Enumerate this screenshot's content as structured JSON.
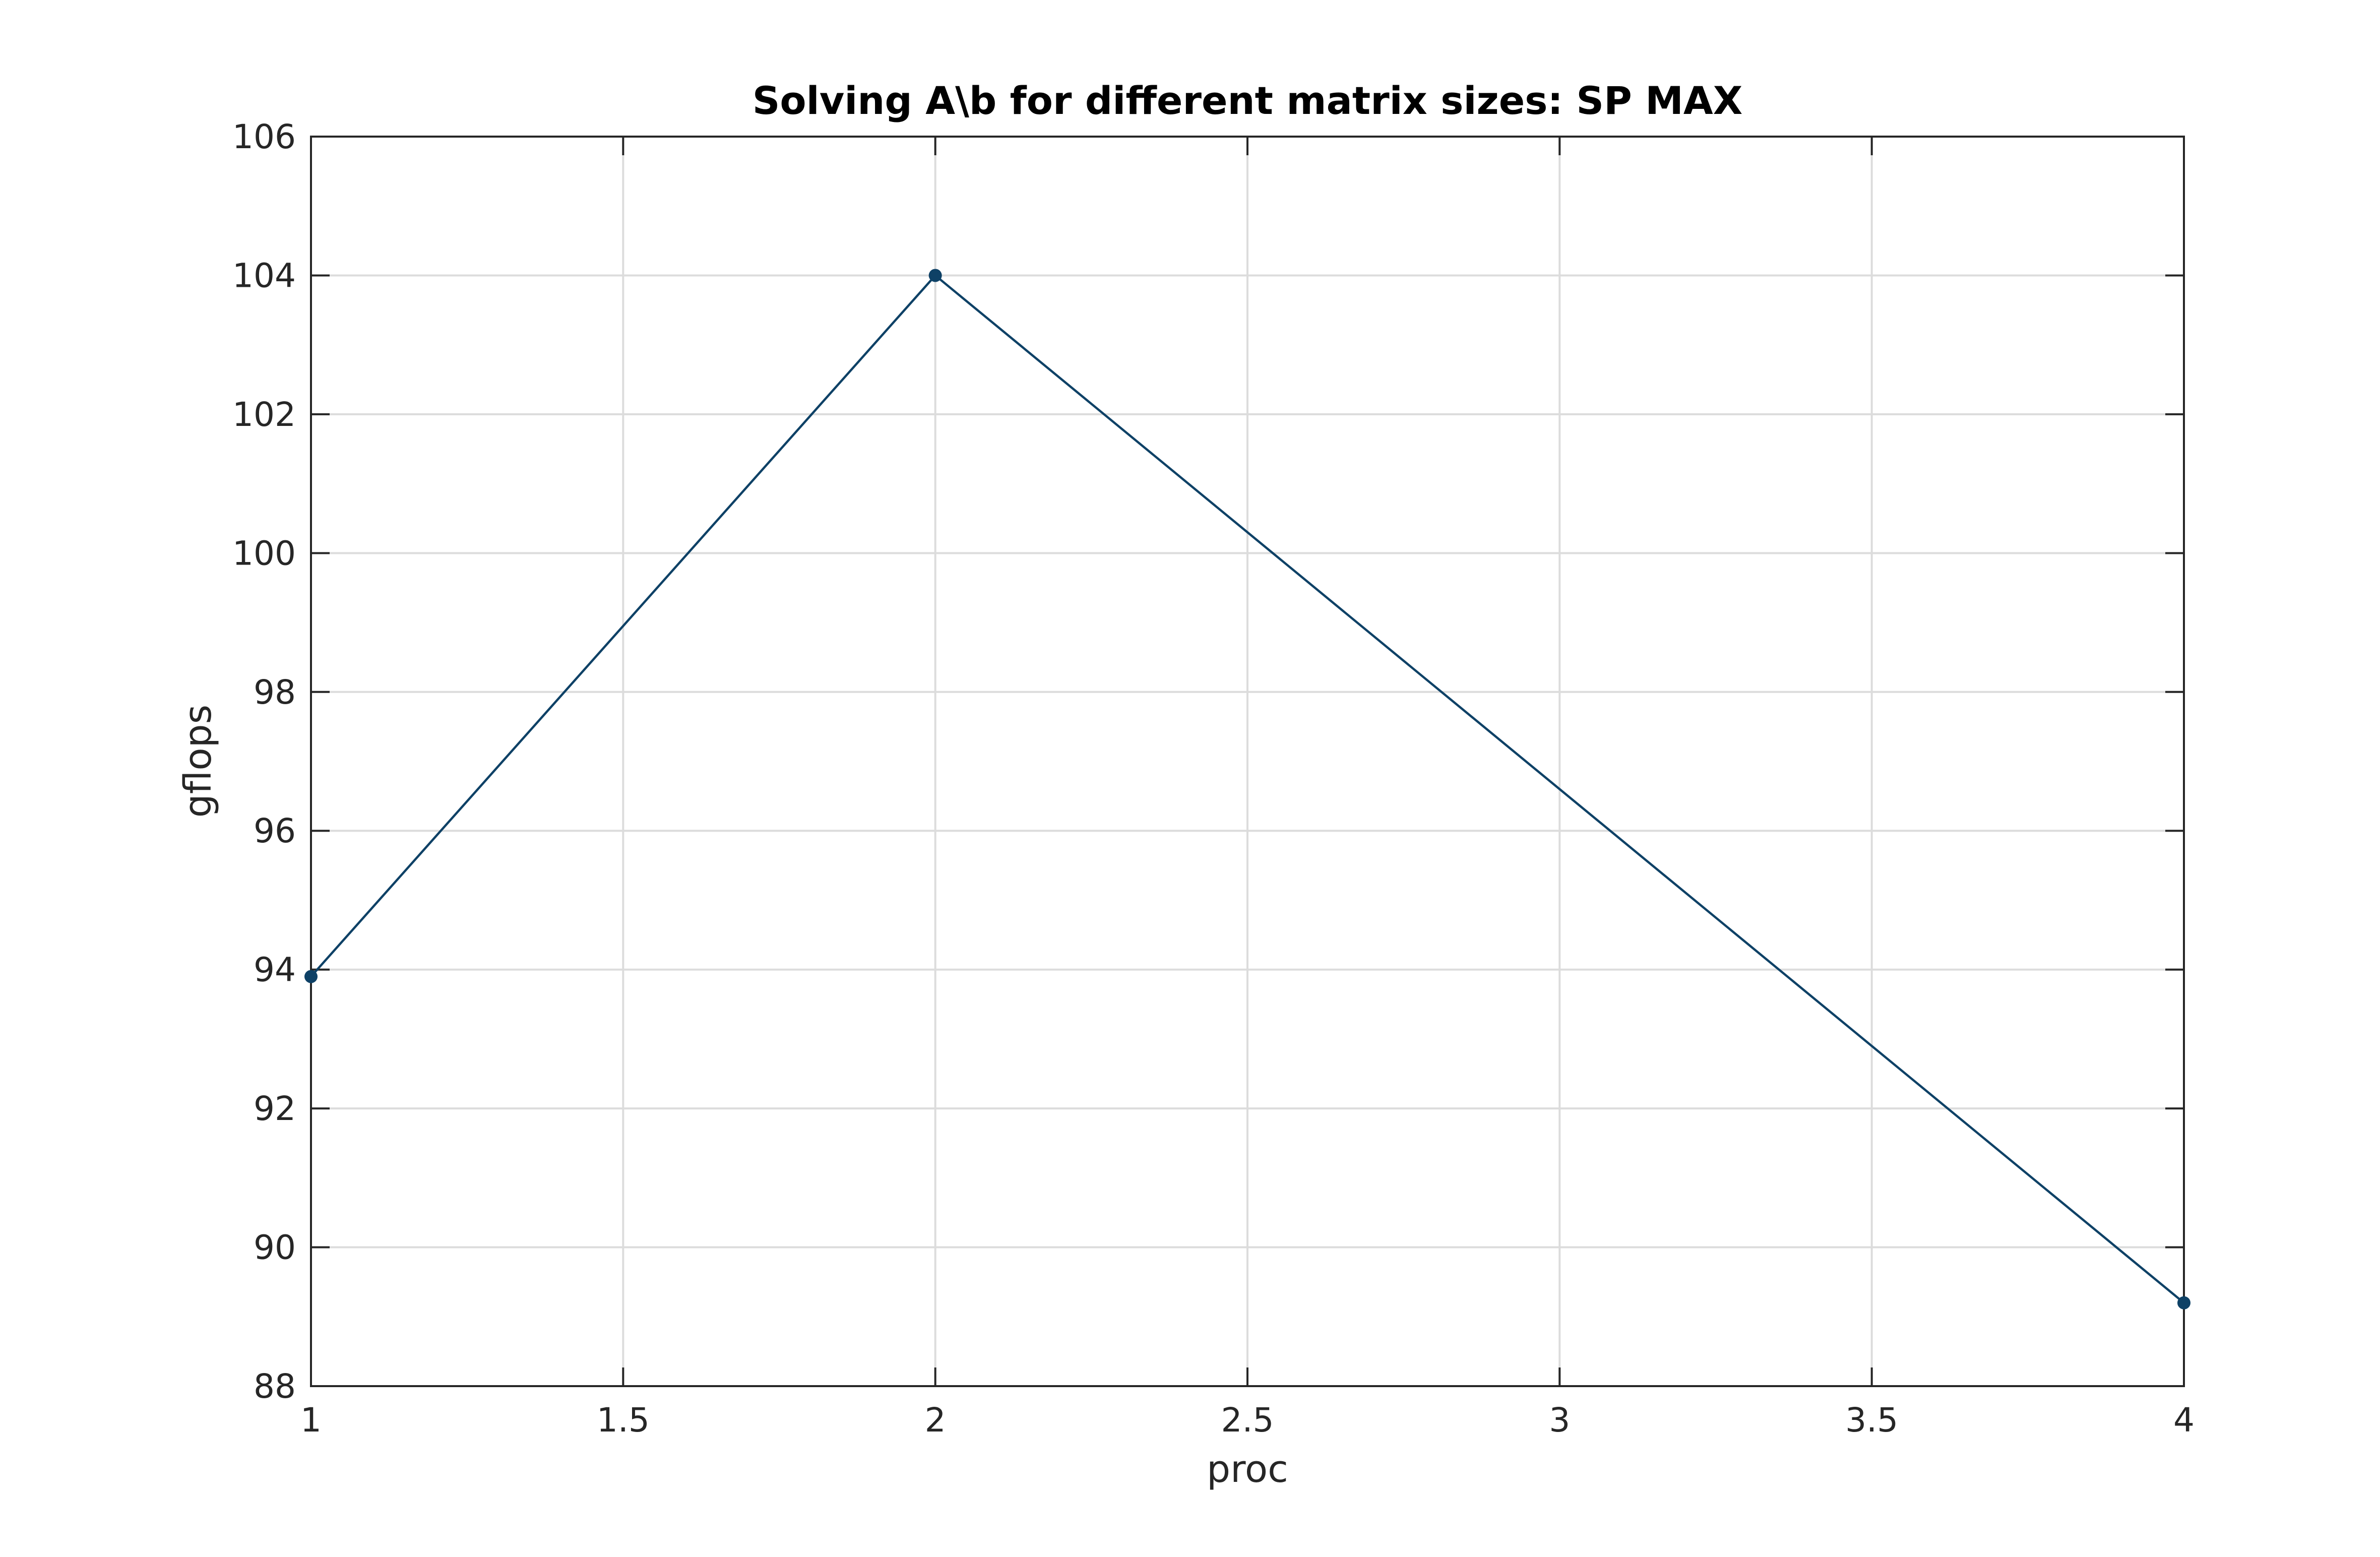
{
  "chart_data": {
    "type": "line",
    "title": "Solving A\\b for different matrix sizes: SP MAX",
    "xlabel": "proc",
    "ylabel": "gflops",
    "xlim": [
      1,
      4
    ],
    "ylim": [
      88,
      106
    ],
    "xticks": [
      1,
      1.5,
      2,
      2.5,
      3,
      3.5,
      4
    ],
    "xtick_labels": [
      "1",
      "1.5",
      "2",
      "2.5",
      "3",
      "3.5",
      "4"
    ],
    "yticks": [
      88,
      90,
      92,
      94,
      96,
      98,
      100,
      102,
      104,
      106
    ],
    "ytick_labels": [
      "88",
      "90",
      "92",
      "94",
      "96",
      "98",
      "100",
      "102",
      "104",
      "106"
    ],
    "grid": true,
    "legend": "none",
    "series": [
      {
        "x": [
          1,
          2,
          4
        ],
        "y": [
          93.9,
          104.0,
          89.2
        ],
        "marker": "circle",
        "color": "#0e4166"
      }
    ]
  },
  "colors": {
    "line": "#0e4166",
    "grid": "#dcdcdc",
    "axes": "#262626",
    "text": "#262626",
    "title": "#000000"
  }
}
